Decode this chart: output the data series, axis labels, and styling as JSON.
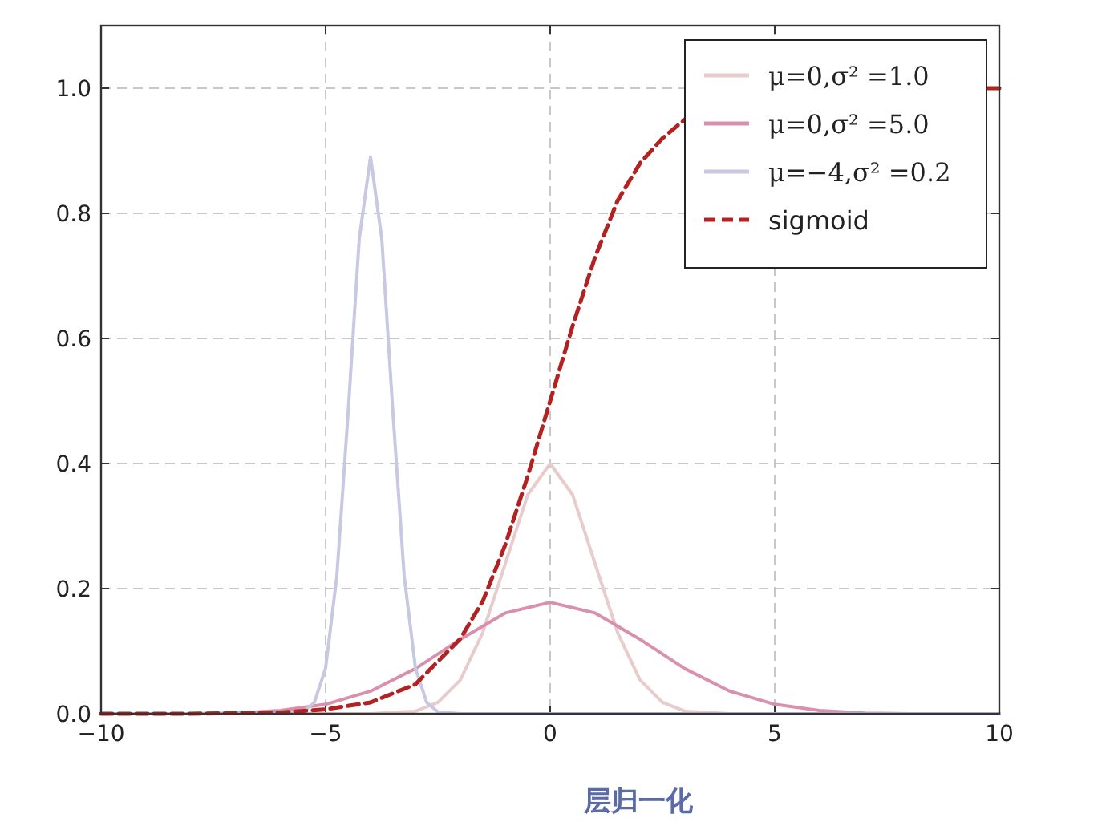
{
  "chart_data": {
    "type": "line",
    "xlim": [
      -10,
      10
    ],
    "ylim": [
      0,
      1.1
    ],
    "xticks": [
      {
        "value": -10,
        "label": "−10"
      },
      {
        "value": -5,
        "label": "−5"
      },
      0,
      5,
      10
    ],
    "yticks": [
      {
        "value": 0,
        "label": "0.0"
      },
      {
        "value": 0.2,
        "label": "0.2"
      },
      {
        "value": 0.4,
        "label": "0.4"
      },
      {
        "value": 0.6,
        "label": "0.6"
      },
      {
        "value": 0.8,
        "label": "0.8"
      },
      {
        "value": 1,
        "label": "1.0"
      }
    ],
    "grid": true,
    "legend": "top right",
    "series": [
      {
        "name": "μ=0,σ² =1.0",
        "color": "#e8cccc",
        "line_style": "solid",
        "x": [
          -10,
          -4,
          -3,
          -2.5,
          -2,
          -1.5,
          -1,
          -0.5,
          0,
          0.5,
          1,
          1.5,
          2,
          2.5,
          3,
          4,
          10
        ],
        "values": [
          0,
          0,
          0.004,
          0.018,
          0.054,
          0.13,
          0.24,
          0.35,
          0.4,
          0.35,
          0.24,
          0.13,
          0.054,
          0.018,
          0.004,
          0,
          0
        ]
      },
      {
        "name": "μ=0,σ² =5.0",
        "color": "#d990ad",
        "line_style": "solid",
        "x": [
          -10,
          -9,
          -8,
          -7,
          -6,
          -5,
          -4,
          -3,
          -2,
          -1,
          0,
          1,
          2,
          3,
          4,
          5,
          6,
          7,
          8,
          9,
          10
        ],
        "values": [
          0,
          0,
          0,
          0.001,
          0.005,
          0.015,
          0.036,
          0.072,
          0.119,
          0.161,
          0.178,
          0.161,
          0.119,
          0.072,
          0.036,
          0.015,
          0.005,
          0.001,
          0,
          0,
          0
        ]
      },
      {
        "name": "μ=−4,σ² =0.2",
        "color": "#c8c8e2",
        "line_style": "solid",
        "x": [
          -10,
          -6,
          -5.5,
          -5.25,
          -5,
          -4.75,
          -4.5,
          -4.25,
          -4,
          -3.75,
          -3.5,
          -3.25,
          -3,
          -2.75,
          -2.5,
          -2,
          10
        ],
        "values": [
          0,
          0,
          0.003,
          0.018,
          0.073,
          0.22,
          0.48,
          0.76,
          0.89,
          0.76,
          0.48,
          0.22,
          0.073,
          0.018,
          0.003,
          0,
          0
        ]
      },
      {
        "name": "sigmoid",
        "color": "#b22222",
        "line_style": "dashed",
        "x": [
          -10,
          -9,
          -8,
          -7,
          -6,
          -5,
          -4,
          -3,
          -2,
          -1.5,
          -1,
          -0.5,
          0,
          0.5,
          1,
          1.5,
          2,
          2.5,
          3,
          4,
          5,
          6,
          7,
          8,
          9,
          9.75,
          10
        ],
        "values": [
          0,
          0,
          0,
          0.001,
          0.002,
          0.007,
          0.018,
          0.047,
          0.12,
          0.18,
          0.27,
          0.38,
          0.5,
          0.62,
          0.73,
          0.82,
          0.88,
          0.92,
          0.95,
          null,
          null,
          null,
          null,
          null,
          null,
          1.0,
          1.0
        ]
      }
    ],
    "annotations": [
      "层归一化"
    ]
  }
}
